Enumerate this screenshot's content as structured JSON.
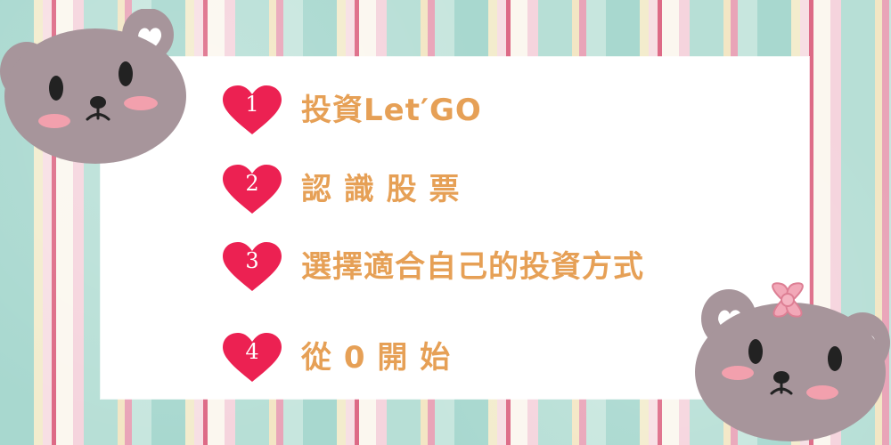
{
  "list": {
    "items": [
      {
        "number": "1",
        "label": "投資Let′GO"
      },
      {
        "number": "2",
        "label": "認 識 股 票"
      },
      {
        "number": "3",
        "label": "選擇適合自己的投資方式"
      },
      {
        "number": "4",
        "label": "從 0 開 始"
      }
    ]
  },
  "icons": {
    "heart": "heart-icon",
    "bear_left": "bear-icon",
    "bear_right": "bear-with-bow-icon"
  },
  "colors": {
    "heart": "#ec2152",
    "label": "#e6a056",
    "card": "#ffffff",
    "bear": "#a8979c",
    "blush": "#f29aa7"
  }
}
